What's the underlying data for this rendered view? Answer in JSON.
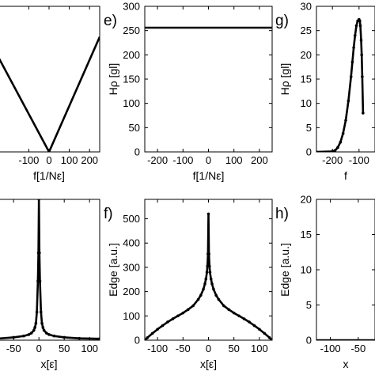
{
  "chart_data": [
    {
      "id": "d",
      "panel_letter": "",
      "type": "line",
      "xlabel": "f[1/Nε]",
      "ylabel": "",
      "x_ticks": [
        -100,
        0,
        100,
        200
      ],
      "y_ticks": [],
      "xlim": [
        -250,
        250
      ],
      "ylim": [
        0,
        200
      ],
      "grid": false,
      "series": [
        {
          "x": [
            -250,
            0,
            250
          ],
          "y": [
            130,
            0,
            158
          ],
          "markers": false
        }
      ]
    },
    {
      "id": "e",
      "panel_letter": "e)",
      "type": "line",
      "xlabel": "f[1/Nε]",
      "ylabel": "Hρ [gl]",
      "x_ticks": [
        -200,
        -100,
        0,
        100,
        200
      ],
      "y_ticks": [
        0,
        50,
        100,
        150,
        200,
        250,
        300
      ],
      "xlim": [
        -250,
        250
      ],
      "ylim": [
        0,
        300
      ],
      "grid": false,
      "series": [
        {
          "x": [
            -250,
            250
          ],
          "y": [
            256,
            256
          ],
          "markers": false
        }
      ]
    },
    {
      "id": "g",
      "panel_letter": "g)",
      "type": "line",
      "xlabel": "f",
      "ylabel": "Hρ [gl]",
      "x_ticks": [
        -200,
        -100
      ],
      "y_ticks": [
        0,
        5,
        10,
        15,
        20,
        25,
        30
      ],
      "xlim": [
        -260,
        -40
      ],
      "ylim": [
        0,
        30
      ],
      "grid": false,
      "series": [
        {
          "x": [
            -260,
            -200,
            -190,
            -180,
            -170,
            -160,
            -150,
            -140,
            -130,
            -125,
            -120,
            -115,
            -110,
            -105,
            -100,
            -97,
            -95,
            -92,
            -90,
            -88,
            -85
          ],
          "y": [
            0,
            0.1,
            0.3,
            0.9,
            2.0,
            3.8,
            6.5,
            10.5,
            15.5,
            18.5,
            21.5,
            24.0,
            26.0,
            27.0,
            27.3,
            27.0,
            26.0,
            23.0,
            20.0,
            15.5,
            8.0
          ],
          "markers": true
        }
      ]
    },
    {
      "id": "c",
      "panel_letter": "",
      "type": "line",
      "xlabel": "x[ε]",
      "ylabel": "",
      "x_ticks": [
        -50,
        0,
        50,
        100
      ],
      "y_ticks": [],
      "xlim": [
        -80,
        120
      ],
      "ylim": [
        0,
        1
      ],
      "grid": false,
      "series": [
        {
          "x": [
            -80,
            -50,
            -30,
            -20,
            -15,
            -10,
            -8,
            -6,
            -4,
            -2,
            -1,
            0,
            1,
            2,
            4,
            6,
            8,
            10,
            15,
            20,
            30,
            50,
            80,
            120
          ],
          "y": [
            0.012,
            0.02,
            0.03,
            0.04,
            0.05,
            0.07,
            0.09,
            0.12,
            0.2,
            0.42,
            0.62,
            1.0,
            0.62,
            0.42,
            0.2,
            0.12,
            0.09,
            0.07,
            0.05,
            0.04,
            0.03,
            0.02,
            0.013,
            0.01
          ],
          "markers": true
        }
      ]
    },
    {
      "id": "f",
      "panel_letter": "f)",
      "type": "line",
      "xlabel": "x[ε]",
      "ylabel": "Edge [a.u.]",
      "x_ticks": [
        -100,
        -50,
        0,
        50,
        100
      ],
      "y_ticks": [
        0,
        100,
        200,
        300,
        400,
        500
      ],
      "xlim": [
        -125,
        125
      ],
      "ylim": [
        0,
        580
      ],
      "grid": false,
      "series": [
        {
          "x": [
            -125,
            -120,
            -110,
            -100,
            -90,
            -80,
            -70,
            -60,
            -50,
            -40,
            -30,
            -20,
            -15,
            -10,
            -7,
            -5,
            -3,
            -2,
            -1,
            0,
            1,
            2,
            3,
            5,
            7,
            10,
            15,
            20,
            30,
            40,
            50,
            60,
            70,
            80,
            90,
            100,
            110,
            120,
            125
          ],
          "y": [
            0,
            10,
            28,
            45,
            60,
            75,
            88,
            100,
            112,
            126,
            142,
            168,
            185,
            210,
            232,
            252,
            280,
            305,
            355,
            520,
            355,
            305,
            280,
            252,
            232,
            210,
            185,
            168,
            142,
            126,
            112,
            100,
            88,
            75,
            60,
            45,
            28,
            10,
            0
          ],
          "markers": true
        }
      ]
    },
    {
      "id": "h",
      "panel_letter": "h)",
      "type": "line",
      "xlabel": "x",
      "ylabel": "Edge [a.u.]",
      "x_ticks": [
        -100,
        -50
      ],
      "y_ticks": [
        0,
        5,
        10,
        15,
        20
      ],
      "xlim": [
        -125,
        -20
      ],
      "ylim": [
        0,
        20
      ],
      "grid": false,
      "series": [
        {
          "x": [
            -125,
            -20
          ],
          "y": [
            0,
            0
          ],
          "markers": false
        }
      ]
    }
  ]
}
